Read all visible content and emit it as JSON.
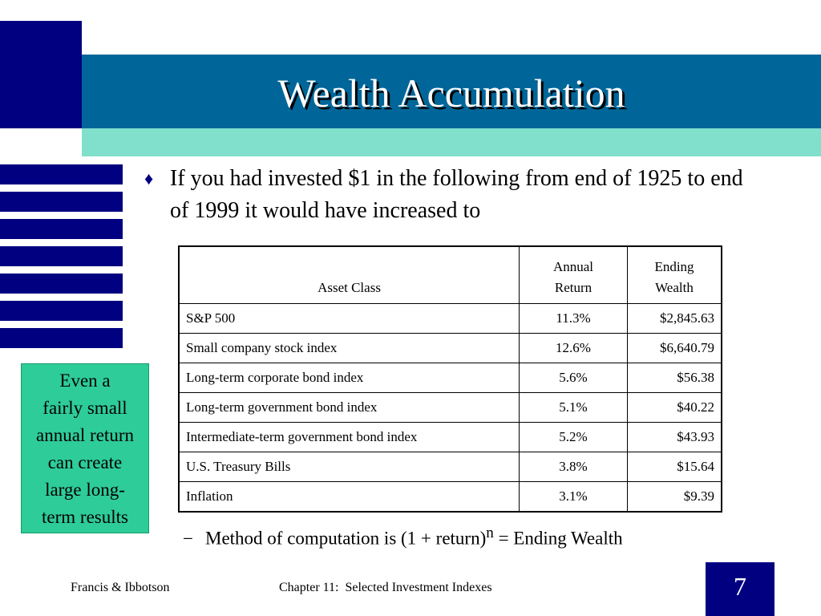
{
  "slide": {
    "title": "Wealth Accumulation",
    "bullet": "If you had invested $1 in the following from end of 1925 to end of 1999 it would have increased to",
    "bullet_marker": "♦",
    "callout_lines": [
      "Even a",
      "fairly small",
      "annual return",
      "can create",
      "large long-",
      "term results"
    ],
    "method_dash": "−",
    "method_text": "Method of computation is (1 + return)",
    "method_sup": "n",
    "method_suffix": " = Ending Wealth",
    "colors": {
      "navy": "#000080",
      "teal": "#006699",
      "mint": "#80e0cc",
      "callout": "#2ecc99"
    }
  },
  "table": {
    "headers": {
      "asset_class": "Asset Class",
      "annual_return_1": "Annual",
      "annual_return_2": "Return",
      "ending_wealth_1": "Ending",
      "ending_wealth_2": "Wealth"
    },
    "rows": [
      {
        "asset": "S&P 500",
        "return": "11.3%",
        "wealth": "$2,845.63"
      },
      {
        "asset": "Small company stock index",
        "return": "12.6%",
        "wealth": "$6,640.79"
      },
      {
        "asset": "Long-term corporate bond index",
        "return": "5.6%",
        "wealth": "$56.38"
      },
      {
        "asset": "Long-term government bond index",
        "return": "5.1%",
        "wealth": "$40.22"
      },
      {
        "asset": "Intermediate-term government bond index",
        "return": "5.2%",
        "wealth": "$43.93"
      },
      {
        "asset": "U.S. Treasury Bills",
        "return": "3.8%",
        "wealth": "$15.64"
      },
      {
        "asset": "Inflation",
        "return": "3.1%",
        "wealth": "$9.39"
      }
    ]
  },
  "footer": {
    "left": "Francis & Ibbotson",
    "center": "Chapter 11:  Selected Investment Indexes",
    "page_number": "7"
  }
}
